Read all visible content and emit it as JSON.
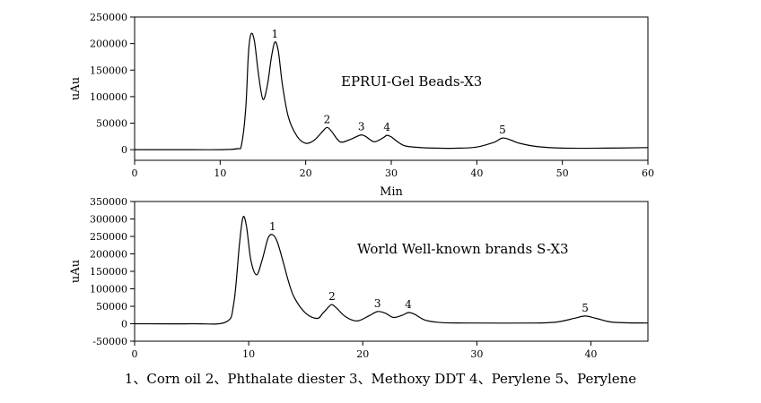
{
  "chart_data": [
    {
      "type": "line",
      "title": "EPRUI-Gel Beads-X3",
      "xlabel": "Min",
      "ylabel": "uAu",
      "xlim": [
        0,
        60
      ],
      "ylim": [
        -20000,
        250000
      ],
      "xticks": [
        0,
        10,
        20,
        30,
        40,
        50,
        60
      ],
      "yticks": [
        0,
        50000,
        100000,
        150000,
        200000,
        250000
      ],
      "grid": false,
      "series": [
        {
          "x": [
            0,
            5,
            10,
            12,
            12.5,
            13,
            13.3,
            13.6,
            14,
            14.5,
            15,
            15.5,
            16,
            16.4,
            16.8,
            17.3,
            18,
            19,
            20,
            21,
            22,
            22.5,
            23,
            24,
            25,
            26,
            26.5,
            27,
            28,
            29,
            29.5,
            30,
            31,
            32,
            35,
            38,
            40,
            42,
            43,
            44,
            45,
            47,
            50,
            55,
            60
          ],
          "y": [
            0,
            0,
            0,
            2000,
            10000,
            80000,
            180000,
            218000,
            205000,
            140000,
            95000,
            120000,
            175000,
            203000,
            185000,
            120000,
            60000,
            25000,
            12000,
            18000,
            35000,
            42000,
            35000,
            15000,
            18000,
            25000,
            28000,
            25000,
            15000,
            22000,
            27000,
            24000,
            12000,
            6000,
            3000,
            3000,
            5000,
            14000,
            22000,
            18000,
            12000,
            6000,
            3000,
            3000,
            4000
          ]
        }
      ],
      "annotations": [
        {
          "text": "1",
          "x": 16.4,
          "y": 203000
        },
        {
          "text": "2",
          "x": 22.5,
          "y": 42000
        },
        {
          "text": "3",
          "x": 26.5,
          "y": 28000
        },
        {
          "text": "4",
          "x": 29.5,
          "y": 27000
        },
        {
          "text": "5",
          "x": 43,
          "y": 22000
        }
      ]
    },
    {
      "type": "line",
      "title": "World Well-known brands S-X3",
      "xlabel": "",
      "ylabel": "uAu",
      "xlim": [
        0,
        45
      ],
      "ylim": [
        -50000,
        350000
      ],
      "xticks": [
        0,
        10,
        20,
        30,
        40
      ],
      "yticks": [
        -50000,
        0,
        50000,
        100000,
        150000,
        200000,
        250000,
        300000,
        350000
      ],
      "grid": false,
      "series": [
        {
          "x": [
            0,
            5,
            8,
            8.7,
            9.2,
            9.5,
            9.8,
            10.2,
            10.7,
            11.2,
            11.7,
            12.1,
            12.5,
            13,
            13.5,
            14,
            15,
            16,
            16.5,
            17,
            17.3,
            17.7,
            18.5,
            19.5,
            20.5,
            21.3,
            22,
            22.7,
            23.5,
            24,
            24.5,
            25.5,
            27,
            30,
            35,
            37,
            38.5,
            39.5,
            40.5,
            42,
            45
          ],
          "y": [
            0,
            0,
            5000,
            60000,
            230000,
            305000,
            280000,
            180000,
            140000,
            185000,
            245000,
            255000,
            235000,
            180000,
            120000,
            75000,
            30000,
            15000,
            30000,
            48000,
            55000,
            45000,
            20000,
            8000,
            22000,
            35000,
            30000,
            18000,
            25000,
            32000,
            28000,
            10000,
            3000,
            2000,
            2000,
            5000,
            15000,
            22000,
            15000,
            4000,
            2000
          ]
        }
      ],
      "annotations": [
        {
          "text": "1",
          "x": 12.1,
          "y": 255000
        },
        {
          "text": "2",
          "x": 17.3,
          "y": 55000
        },
        {
          "text": "3",
          "x": 21.3,
          "y": 35000
        },
        {
          "text": "4",
          "x": 24,
          "y": 32000
        },
        {
          "text": "5",
          "x": 39.5,
          "y": 22000
        }
      ]
    }
  ],
  "caption": "1、Corn oil  2、Phthalate diester 3、Methoxy DDT 4、Perylene    5、Perylene"
}
